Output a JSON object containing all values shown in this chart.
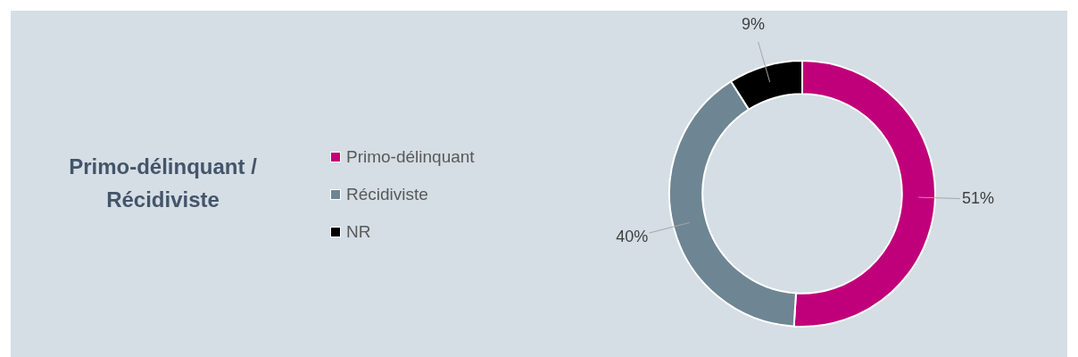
{
  "chart_data": {
    "type": "donut",
    "title": "Primo-délinquant / Récidiviste",
    "categories": [
      "Primo-délinquant",
      "Récidiviste",
      "NR"
    ],
    "values": [
      51,
      40,
      9
    ],
    "colors": [
      "#c0007a",
      "#6e8593",
      "#000000"
    ],
    "value_labels": [
      "51%",
      "40%",
      "9%"
    ],
    "legend": "left"
  }
}
